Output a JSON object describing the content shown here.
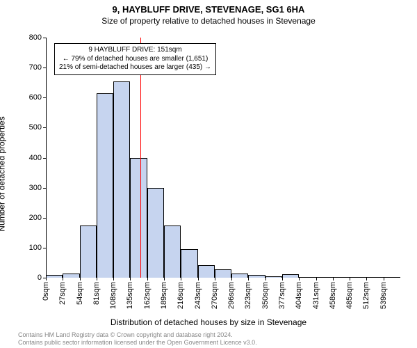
{
  "title": "9, HAYBLUFF DRIVE, STEVENAGE, SG1 6HA",
  "subtitle": "Size of property relative to detached houses in Stevenage",
  "y_axis_label": "Number of detached properties",
  "x_axis_label": "Distribution of detached houses by size in Stevenage",
  "footer_line1": "Contains HM Land Registry data © Crown copyright and database right 2024.",
  "footer_line2": "Contains public sector information licensed under the Open Government Licence v3.0.",
  "annotation": {
    "line1": "9 HAYBLUFF DRIVE: 151sqm",
    "line2": "← 79% of detached houses are smaller (1,651)",
    "line3": "21% of semi-detached houses are larger (435) →"
  },
  "chart": {
    "type": "histogram",
    "ylim": [
      0,
      800
    ],
    "ytick_step": 100,
    "x_tick_labels": [
      "0sqm",
      "27sqm",
      "54sqm",
      "81sqm",
      "108sqm",
      "135sqm",
      "162sqm",
      "189sqm",
      "216sqm",
      "243sqm",
      "270sqm",
      "296sqm",
      "323sqm",
      "350sqm",
      "377sqm",
      "404sqm",
      "431sqm",
      "458sqm",
      "485sqm",
      "512sqm",
      "539sqm"
    ],
    "values": [
      10,
      15,
      173,
      615,
      655,
      400,
      300,
      175,
      95,
      42,
      28,
      15,
      10,
      5,
      12,
      3,
      0,
      0,
      0,
      0,
      2
    ],
    "num_bars": 21,
    "bar_color": "#c6d4ef",
    "bar_border_color": "#000000",
    "marker_index_position": 5.6,
    "marker_color": "#ff0000",
    "axis_color": "#000000",
    "background_color": "#ffffff",
    "title_fontsize": 13,
    "subtitle_fontsize": 12,
    "axis_label_fontsize": 12,
    "tick_fontsize": 11,
    "annotation_fontsize": 10,
    "footer_fontsize": 9,
    "footer_color": "#888888"
  }
}
